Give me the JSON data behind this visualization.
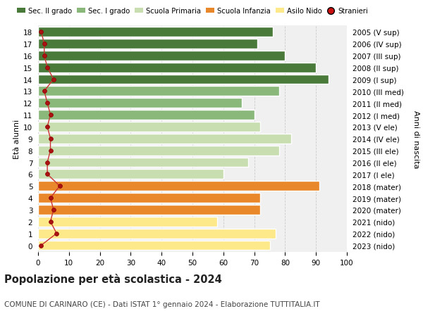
{
  "ages": [
    0,
    1,
    2,
    3,
    4,
    5,
    6,
    7,
    8,
    9,
    10,
    11,
    12,
    13,
    14,
    15,
    16,
    17,
    18
  ],
  "years": [
    "2023 (nido)",
    "2022 (nido)",
    "2021 (nido)",
    "2020 (mater)",
    "2019 (mater)",
    "2018 (mater)",
    "2017 (I ele)",
    "2016 (II ele)",
    "2015 (III ele)",
    "2014 (IV ele)",
    "2013 (V ele)",
    "2012 (I med)",
    "2011 (II med)",
    "2010 (III med)",
    "2009 (I sup)",
    "2008 (II sup)",
    "2007 (III sup)",
    "2006 (IV sup)",
    "2005 (V sup)"
  ],
  "bar_values": [
    75,
    77,
    58,
    72,
    72,
    91,
    60,
    68,
    78,
    82,
    72,
    70,
    66,
    78,
    94,
    90,
    80,
    71,
    76
  ],
  "stranieri": [
    1,
    6,
    4,
    5,
    4,
    7,
    3,
    3,
    4,
    4,
    3,
    4,
    3,
    2,
    5,
    3,
    2,
    2,
    1
  ],
  "bar_colors": [
    "#fde88a",
    "#fde88a",
    "#fde88a",
    "#e8882a",
    "#e8882a",
    "#e8882a",
    "#c8ddb0",
    "#c8ddb0",
    "#c8ddb0",
    "#c8ddb0",
    "#c8ddb0",
    "#8ab87a",
    "#8ab87a",
    "#8ab87a",
    "#4a7a3a",
    "#4a7a3a",
    "#4a7a3a",
    "#4a7a3a",
    "#4a7a3a"
  ],
  "legend_labels": [
    "Sec. II grado",
    "Sec. I grado",
    "Scuola Primaria",
    "Scuola Infanzia",
    "Asilo Nido",
    "Stranieri"
  ],
  "legend_colors": [
    "#4a7a3a",
    "#8ab87a",
    "#c8ddb0",
    "#e8882a",
    "#fde88a",
    "#cc1111"
  ],
  "title": "Popolazione per età scolastica - 2024",
  "subtitle": "COMUNE DI CARINARO (CE) - Dati ISTAT 1° gennaio 2024 - Elaborazione TUTTITALIA.IT",
  "ylabel_left": "Età alunni",
  "ylabel_right": "Anni di nascita",
  "xlim": [
    0,
    100
  ],
  "xticks": [
    0,
    10,
    20,
    30,
    40,
    50,
    60,
    70,
    80,
    90,
    100
  ],
  "plot_bg_color": "#f0f0f0",
  "fig_bg_color": "#ffffff",
  "grid_color": "#cccccc",
  "bar_height": 0.82,
  "stranieri_color": "#aa1111",
  "stranieri_line_color": "#cc3333"
}
